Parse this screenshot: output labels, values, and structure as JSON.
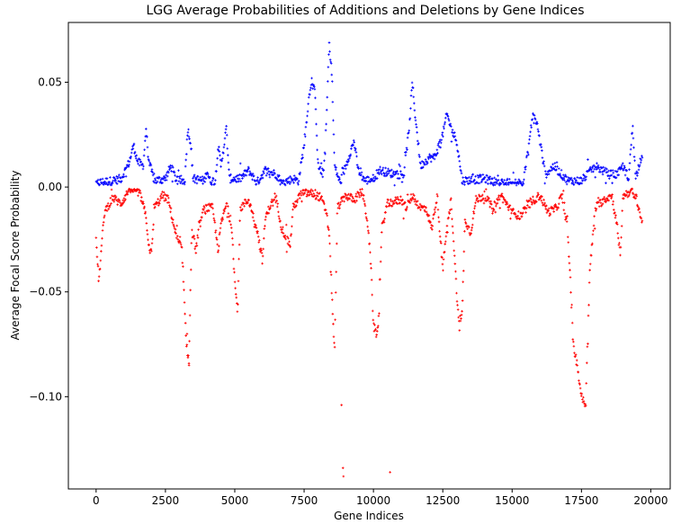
{
  "chart_data": {
    "type": "scatter",
    "title": "LGG Average Probabilities of Additions and Deletions by Gene Indices",
    "xlabel": "Gene Indices",
    "ylabel": "Average Focal Score Probability",
    "xlim": [
      -1000,
      20700
    ],
    "ylim": [
      -0.144,
      0.0785
    ],
    "xticks": [
      0,
      2500,
      5000,
      7500,
      10000,
      12500,
      15000,
      17500,
      20000
    ],
    "yticks": [
      -0.1,
      -0.05,
      0.0,
      0.05
    ],
    "ytick_labels": [
      "−0.10",
      "−0.05",
      "0.00",
      "0.05"
    ],
    "grid": false,
    "legend": "none",
    "series": [
      {
        "color": "#0000ff",
        "marker": "+",
        "profile": [
          [
            0,
            0.002
          ],
          [
            600,
            0.003
          ],
          [
            900,
            0.004
          ],
          [
            1200,
            0.012
          ],
          [
            1350,
            0.02
          ],
          [
            1500,
            0.012
          ],
          [
            1700,
            0.01
          ],
          [
            1800,
            0.028
          ],
          [
            1900,
            0.012
          ],
          [
            2100,
            0.003
          ],
          [
            2500,
            0.004
          ],
          [
            2700,
            0.01
          ],
          [
            2900,
            0.003
          ],
          [
            3200,
            0.003
          ],
          [
            3300,
            0.028
          ],
          [
            3400,
            0.022
          ],
          [
            3500,
            0.004
          ],
          [
            3900,
            0.003
          ],
          [
            4000,
            0.008
          ],
          [
            4100,
            0.003
          ],
          [
            4300,
            0.003
          ],
          [
            4400,
            0.02
          ],
          [
            4500,
            0.01
          ],
          [
            4700,
            0.028
          ],
          [
            4800,
            0.004
          ],
          [
            5200,
            0.004
          ],
          [
            5500,
            0.008
          ],
          [
            5800,
            0.002
          ],
          [
            6100,
            0.008
          ],
          [
            6500,
            0.006
          ],
          [
            6700,
            0.002
          ],
          [
            7100,
            0.004
          ],
          [
            7300,
            0.003
          ],
          [
            7500,
            0.02
          ],
          [
            7650,
            0.04
          ],
          [
            7750,
            0.05
          ],
          [
            7900,
            0.045
          ],
          [
            8000,
            0.01
          ],
          [
            8200,
            0.006
          ],
          [
            8300,
            0.03
          ],
          [
            8400,
            0.068
          ],
          [
            8500,
            0.055
          ],
          [
            8600,
            0.01
          ],
          [
            8800,
            0.002
          ],
          [
            9000,
            0.01
          ],
          [
            9300,
            0.022
          ],
          [
            9450,
            0.008
          ],
          [
            9700,
            0.003
          ],
          [
            10000,
            0.004
          ],
          [
            10200,
            0.008
          ],
          [
            10800,
            0.006
          ],
          [
            11100,
            0.006
          ],
          [
            11300,
            0.03
          ],
          [
            11400,
            0.05
          ],
          [
            11500,
            0.035
          ],
          [
            11700,
            0.01
          ],
          [
            12000,
            0.014
          ],
          [
            12200,
            0.014
          ],
          [
            12500,
            0.025
          ],
          [
            12650,
            0.035
          ],
          [
            12800,
            0.028
          ],
          [
            13000,
            0.022
          ],
          [
            13200,
            0.003
          ],
          [
            14000,
            0.004
          ],
          [
            14500,
            0.002
          ],
          [
            15000,
            0.002
          ],
          [
            15400,
            0.002
          ],
          [
            15600,
            0.02
          ],
          [
            15750,
            0.035
          ],
          [
            15900,
            0.03
          ],
          [
            16200,
            0.006
          ],
          [
            16500,
            0.01
          ],
          [
            17000,
            0.003
          ],
          [
            17500,
            0.003
          ],
          [
            18000,
            0.01
          ],
          [
            18500,
            0.006
          ],
          [
            18800,
            0.006
          ],
          [
            19000,
            0.01
          ],
          [
            19200,
            0.004
          ],
          [
            19350,
            0.03
          ],
          [
            19450,
            0.004
          ],
          [
            19600,
            0.012
          ],
          [
            19700,
            0.016
          ]
        ]
      },
      {
        "color": "#ff0000",
        "marker": "+",
        "profile": [
          [
            0,
            -0.026
          ],
          [
            100,
            -0.045
          ],
          [
            200,
            -0.028
          ],
          [
            300,
            -0.012
          ],
          [
            600,
            -0.005
          ],
          [
            900,
            -0.008
          ],
          [
            1200,
            -0.001
          ],
          [
            1400,
            0.0
          ],
          [
            1600,
            -0.004
          ],
          [
            1800,
            -0.014
          ],
          [
            1900,
            -0.028
          ],
          [
            2000,
            -0.032
          ],
          [
            2100,
            -0.01
          ],
          [
            2400,
            -0.004
          ],
          [
            2600,
            -0.006
          ],
          [
            2900,
            -0.024
          ],
          [
            3100,
            -0.03
          ],
          [
            3250,
            -0.075
          ],
          [
            3350,
            -0.083
          ],
          [
            3450,
            -0.02
          ],
          [
            3600,
            -0.03
          ],
          [
            3700,
            -0.02
          ],
          [
            3900,
            -0.01
          ],
          [
            4200,
            -0.01
          ],
          [
            4400,
            -0.03
          ],
          [
            4500,
            -0.018
          ],
          [
            4700,
            -0.008
          ],
          [
            4900,
            -0.02
          ],
          [
            5000,
            -0.045
          ],
          [
            5100,
            -0.06
          ],
          [
            5200,
            -0.01
          ],
          [
            5500,
            -0.006
          ],
          [
            5800,
            -0.02
          ],
          [
            6000,
            -0.035
          ],
          [
            6100,
            -0.015
          ],
          [
            6300,
            -0.008
          ],
          [
            6500,
            -0.006
          ],
          [
            6700,
            -0.02
          ],
          [
            6900,
            -0.025
          ],
          [
            7000,
            -0.028
          ],
          [
            7100,
            -0.01
          ],
          [
            7400,
            -0.003
          ],
          [
            7800,
            -0.003
          ],
          [
            8100,
            -0.005
          ],
          [
            8300,
            -0.012
          ],
          [
            8400,
            -0.022
          ],
          [
            8500,
            -0.05
          ],
          [
            8600,
            -0.08
          ],
          [
            8700,
            -0.01
          ],
          [
            9000,
            -0.004
          ],
          [
            9300,
            -0.006
          ],
          [
            9600,
            -0.002
          ],
          [
            9800,
            -0.018
          ],
          [
            9900,
            -0.035
          ],
          [
            10000,
            -0.066
          ],
          [
            10100,
            -0.07
          ],
          [
            10200,
            -0.062
          ],
          [
            10300,
            -0.02
          ],
          [
            10500,
            -0.008
          ],
          [
            11000,
            -0.006
          ],
          [
            11200,
            -0.01
          ],
          [
            11400,
            -0.004
          ],
          [
            11700,
            -0.01
          ],
          [
            11900,
            -0.01
          ],
          [
            12100,
            -0.02
          ],
          [
            12300,
            -0.004
          ],
          [
            12400,
            -0.022
          ],
          [
            12500,
            -0.04
          ],
          [
            12600,
            -0.025
          ],
          [
            12800,
            -0.006
          ],
          [
            13000,
            -0.05
          ],
          [
            13100,
            -0.068
          ],
          [
            13200,
            -0.06
          ],
          [
            13300,
            -0.015
          ],
          [
            13500,
            -0.022
          ],
          [
            13700,
            -0.006
          ],
          [
            14000,
            -0.004
          ],
          [
            14300,
            -0.01
          ],
          [
            14600,
            -0.004
          ],
          [
            15000,
            -0.012
          ],
          [
            15300,
            -0.014
          ],
          [
            15600,
            -0.008
          ],
          [
            16000,
            -0.004
          ],
          [
            16300,
            -0.012
          ],
          [
            16600,
            -0.01
          ],
          [
            16800,
            -0.004
          ],
          [
            17000,
            -0.02
          ],
          [
            17100,
            -0.045
          ],
          [
            17200,
            -0.075
          ],
          [
            17350,
            -0.085
          ],
          [
            17500,
            -0.1
          ],
          [
            17650,
            -0.104
          ],
          [
            17800,
            -0.04
          ],
          [
            18000,
            -0.01
          ],
          [
            18300,
            -0.006
          ],
          [
            18600,
            -0.004
          ],
          [
            18800,
            -0.02
          ],
          [
            18900,
            -0.033
          ],
          [
            19000,
            -0.004
          ],
          [
            19300,
            -0.002
          ],
          [
            19500,
            -0.006
          ],
          [
            19600,
            -0.012
          ],
          [
            19700,
            -0.018
          ]
        ],
        "outliers": [
          [
            8850,
            -0.104
          ],
          [
            8900,
            -0.134
          ],
          [
            8920,
            -0.138
          ],
          [
            10600,
            -0.136
          ],
          [
            3280,
            -0.07
          ],
          [
            3350,
            -0.085
          ]
        ]
      }
    ]
  }
}
